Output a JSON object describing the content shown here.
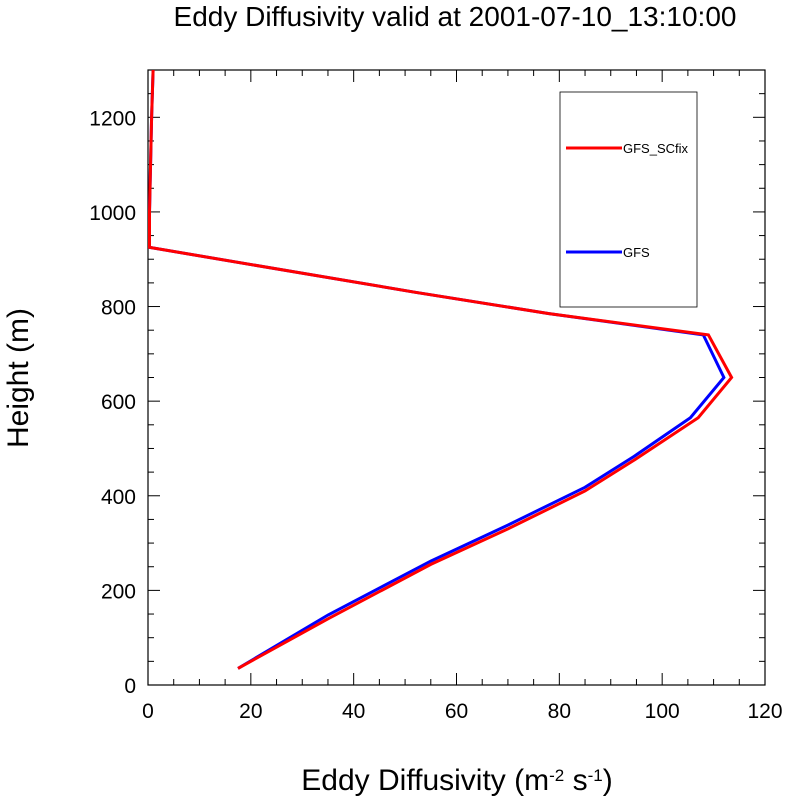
{
  "chart_data": {
    "type": "line",
    "title": "Eddy Diffusivity valid at 2001-07-10_13:10:00",
    "xlabel": "Eddy Diffusivity (m",
    "xlabel_sup1": "-2",
    "xlabel_mid": " s",
    "xlabel_sup2": "-1",
    "xlabel_end": ")",
    "ylabel": "Height (m)",
    "xlim": [
      0,
      120
    ],
    "ylim": [
      0,
      1300
    ],
    "xticks": [
      0,
      20,
      40,
      60,
      80,
      100,
      120
    ],
    "yticks": [
      0,
      200,
      400,
      600,
      800,
      1000,
      1200
    ],
    "legend_position": "top-right",
    "series": [
      {
        "name": "GFS_SCfix",
        "color": "#ff0000",
        "x": [
          17.5,
          35,
          55,
          70,
          85,
          94.5,
          107,
          113.5,
          109,
          78,
          52,
          0.3,
          0.3,
          0.7,
          1.0
        ],
        "y": [
          35,
          140,
          255,
          330,
          410,
          475,
          565,
          650,
          740,
          785,
          830,
          925,
          1000,
          1200,
          1300
        ]
      },
      {
        "name": "GFS",
        "color": "#0000ff",
        "x": [
          17.5,
          35,
          55,
          70,
          85,
          94.5,
          105.5,
          112,
          108,
          78,
          52,
          0.3,
          0.3,
          0.7,
          1.0
        ],
        "y": [
          35,
          148,
          262,
          338,
          418,
          483,
          565,
          650,
          740,
          785,
          830,
          925,
          1000,
          1200,
          1300
        ]
      }
    ]
  }
}
